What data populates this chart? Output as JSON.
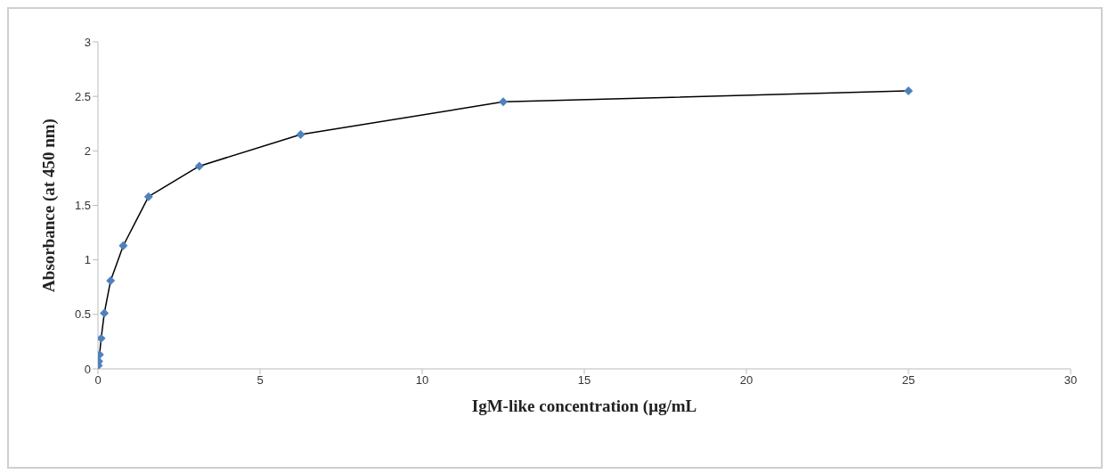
{
  "chart_data": {
    "type": "line",
    "xlabel": "IgM-like concentration (μg/mL",
    "ylabel": "Absorbance (at 450 nm)",
    "x": [
      0.012,
      0.024,
      0.049,
      0.098,
      0.195,
      0.39,
      0.78,
      1.56,
      3.125,
      6.25,
      12.5,
      25
    ],
    "series": [
      {
        "color": "#4f81bd",
        "values": [
          0.03,
          0.07,
          0.13,
          0.28,
          0.51,
          0.81,
          1.13,
          1.58,
          1.86,
          2.15,
          2.45,
          2.55
        ]
      }
    ],
    "xlim": [
      0,
      30
    ],
    "xticks": [
      0,
      5,
      10,
      15,
      20,
      25,
      30
    ],
    "ylim": [
      0,
      3
    ],
    "yticks": [
      0,
      0.5,
      1,
      1.5,
      2,
      2.5,
      3
    ],
    "legend": false,
    "marker": "diamond",
    "line_style": "solid"
  }
}
